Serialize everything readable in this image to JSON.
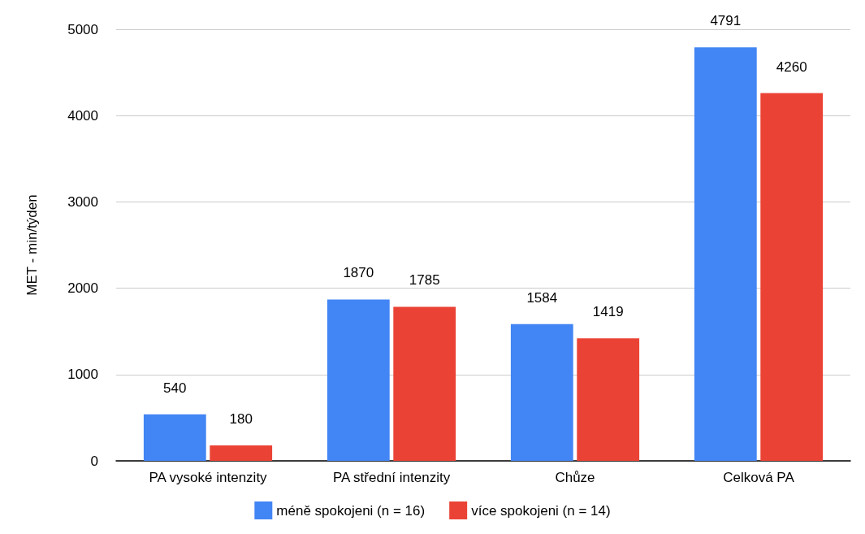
{
  "chart_data": {
    "type": "bar",
    "ylabel": "MET - min/týden",
    "categories": [
      "PA vysoké intenzity",
      "PA střední intenzity",
      "Chůze",
      "Celková PA"
    ],
    "series": [
      {
        "name": "méně spokojeni (n = 16)",
        "color": "#4285f4",
        "values": [
          540,
          1870,
          1584,
          4791
        ]
      },
      {
        "name": "více spokojeni (n = 14)",
        "color": "#ea4335",
        "values": [
          180,
          1785,
          1419,
          4260
        ]
      }
    ],
    "ylim": [
      0,
      5000
    ],
    "yticks": [
      0,
      1000,
      2000,
      3000,
      4000,
      5000
    ],
    "grid": "y",
    "legend": "bottom",
    "data_labels": true
  }
}
